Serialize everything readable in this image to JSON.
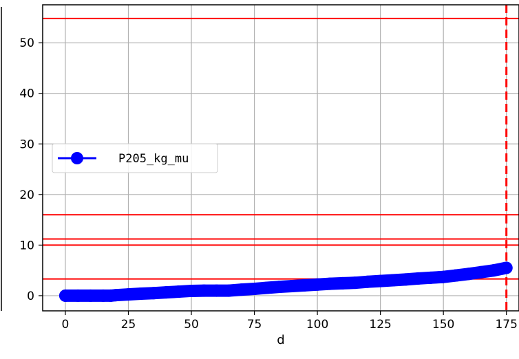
{
  "chart_data": {
    "type": "line",
    "title": "",
    "xlabel": "d",
    "ylabel": "",
    "xlim": [
      -9,
      180
    ],
    "ylim": [
      -3,
      57.5
    ],
    "xticks": [
      0,
      25,
      50,
      75,
      100,
      125,
      150,
      175
    ],
    "yticks": [
      0,
      10,
      20,
      30,
      40,
      50
    ],
    "grid": true,
    "legend_position": "center-left",
    "series": [
      {
        "name": "P205_kg_mu",
        "color": "#0000ff",
        "marker": "circle",
        "x": [
          0,
          5,
          10,
          15,
          18,
          20,
          25,
          30,
          35,
          40,
          45,
          50,
          55,
          60,
          65,
          70,
          75,
          80,
          85,
          90,
          95,
          100,
          105,
          110,
          115,
          120,
          125,
          130,
          135,
          140,
          145,
          150,
          155,
          160,
          165,
          170,
          175
        ],
        "y": [
          0,
          0,
          0,
          0,
          0,
          0.1,
          0.25,
          0.4,
          0.5,
          0.65,
          0.8,
          0.95,
          1.0,
          1.0,
          1.0,
          1.2,
          1.35,
          1.55,
          1.75,
          1.9,
          2.05,
          2.2,
          2.35,
          2.45,
          2.55,
          2.75,
          2.9,
          3.05,
          3.2,
          3.4,
          3.55,
          3.7,
          4.0,
          4.3,
          4.65,
          5.0,
          5.5
        ]
      }
    ],
    "reference_lines": {
      "color": "#ff0000",
      "horizontal": [
        54.8,
        16.0,
        11.2,
        10.0,
        3.3
      ],
      "vertical_dashed": [
        175
      ]
    }
  }
}
